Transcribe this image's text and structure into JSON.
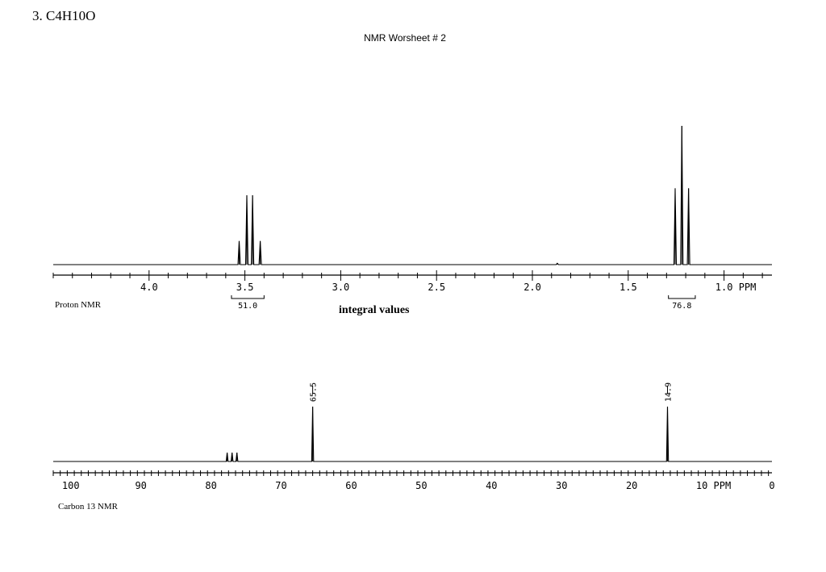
{
  "header": {
    "problem": "3.  C4H10O",
    "sheet_title": "NMR Worsheet # 2"
  },
  "integral_caption": "integral values",
  "chart_data": [
    {
      "type": "line",
      "panel": "proton",
      "label": "Proton NMR",
      "xlim": [
        4.5,
        0.75
      ],
      "axis_unit": "PPM",
      "major_ticks": [
        4.0,
        3.5,
        3.0,
        2.5,
        2.0,
        1.5,
        1.0
      ],
      "tick_labels": [
        "4.0",
        "3.5",
        "3.0",
        "2.5",
        "2.0",
        "1.5",
        "1.0 PPM"
      ],
      "peaks": [
        {
          "shift": 3.53,
          "height": 0.17
        },
        {
          "shift": 3.49,
          "height": 0.5
        },
        {
          "shift": 3.46,
          "height": 0.5
        },
        {
          "shift": 3.42,
          "height": 0.17
        },
        {
          "shift": 1.87,
          "height": 0.01
        },
        {
          "shift": 1.255,
          "height": 0.55
        },
        {
          "shift": 1.22,
          "height": 1.0
        },
        {
          "shift": 1.185,
          "height": 0.55
        }
      ],
      "integrals": [
        {
          "from": 3.57,
          "to": 3.4,
          "value": "51.0"
        },
        {
          "from": 1.29,
          "to": 1.15,
          "value": "76.8"
        }
      ]
    },
    {
      "type": "line",
      "panel": "carbon13",
      "label": "Carbon 13 NMR",
      "xlim": [
        102.5,
        0
      ],
      "axis_unit": "PPM",
      "major_ticks": [
        100,
        90,
        80,
        70,
        60,
        50,
        40,
        30,
        20,
        10,
        0
      ],
      "tick_labels": [
        "100",
        "90",
        "80",
        "70",
        "60",
        "50",
        "40",
        "30",
        "20",
        "10 PPM",
        "0"
      ],
      "peaks": [
        {
          "shift": 77.7,
          "height": 0.16
        },
        {
          "shift": 77.0,
          "height": 0.16
        },
        {
          "shift": 76.3,
          "height": 0.16
        },
        {
          "shift": 65.5,
          "height": 1.0
        },
        {
          "shift": 14.9,
          "height": 1.0
        }
      ],
      "peak_labels": [
        {
          "shift": 65.5,
          "text": "65.5"
        },
        {
          "shift": 14.9,
          "text": "14.9"
        }
      ]
    }
  ]
}
